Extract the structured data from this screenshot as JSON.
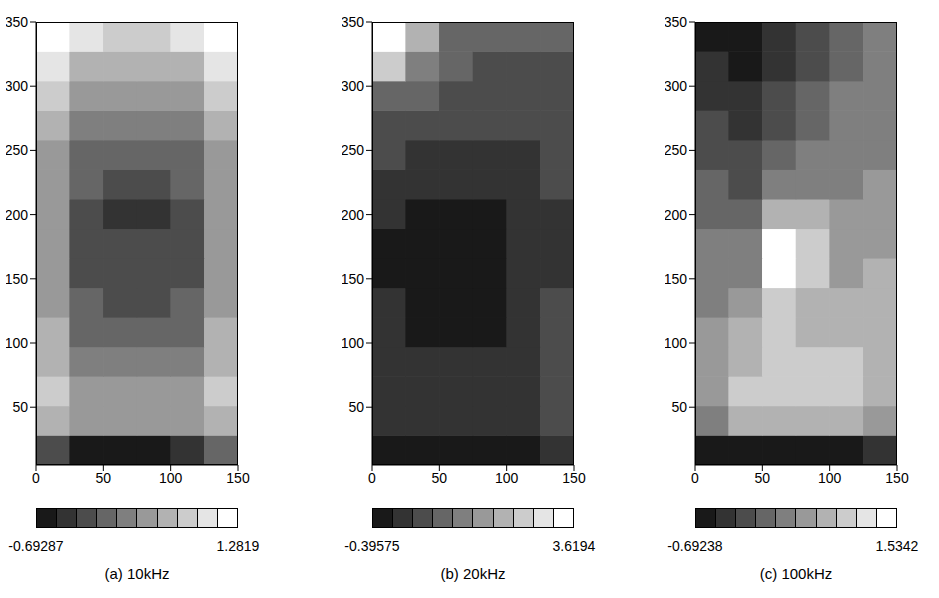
{
  "chart_data": [
    {
      "type": "heatmap",
      "title": "(a) 10kHz",
      "x": [
        12.5,
        37.5,
        62.5,
        87.5,
        112.5,
        137.5
      ],
      "y": [
        16.5,
        39.5,
        62.5,
        85.5,
        108.5,
        131.5,
        154.5,
        177.5,
        200.5,
        223.5,
        246.5,
        269.5,
        292.5,
        315.5,
        338.5
      ],
      "cells": [
        [
          -0.2,
          -0.5,
          -0.6,
          -0.5,
          -0.4,
          -0.1
        ],
        [
          0.6,
          0.3,
          0.3,
          0.3,
          0.3,
          0.6
        ],
        [
          0.7,
          0.4,
          0.3,
          0.3,
          0.4,
          0.7
        ],
        [
          0.6,
          0.2,
          0.1,
          0.1,
          0.2,
          0.6
        ],
        [
          0.5,
          0.0,
          -0.1,
          -0.1,
          0.0,
          0.5
        ],
        [
          0.4,
          -0.1,
          -0.2,
          -0.2,
          -0.1,
          0.4
        ],
        [
          0.3,
          -0.2,
          -0.2,
          -0.2,
          -0.2,
          0.3
        ],
        [
          0.3,
          -0.2,
          -0.2,
          -0.2,
          -0.2,
          0.3
        ],
        [
          0.3,
          -0.2,
          -0.3,
          -0.3,
          -0.2,
          0.3
        ],
        [
          0.3,
          -0.1,
          -0.2,
          -0.2,
          -0.1,
          0.3
        ],
        [
          0.4,
          0.0,
          -0.1,
          -0.1,
          0.0,
          0.4
        ],
        [
          0.5,
          0.2,
          0.1,
          0.1,
          0.2,
          0.5
        ],
        [
          0.7,
          0.4,
          0.3,
          0.3,
          0.4,
          0.7
        ],
        [
          0.9,
          0.6,
          0.5,
          0.5,
          0.6,
          0.9
        ],
        [
          1.1,
          0.9,
          0.8,
          0.8,
          0.9,
          1.1
        ]
      ],
      "xlim": [
        0,
        150
      ],
      "xticks": [
        0,
        50,
        100,
        150
      ],
      "ylim": [
        5,
        350
      ],
      "yticks": [
        50,
        100,
        150,
        200,
        250,
        300,
        350
      ],
      "colorbar": {
        "range": [
          -0.69287,
          1.2819
        ],
        "ticks": [
          -0.69287,
          1.2819
        ]
      }
    },
    {
      "type": "heatmap",
      "title": "(b) 20kHz",
      "x": [
        12.5,
        37.5,
        62.5,
        87.5,
        112.5,
        137.5
      ],
      "y": [
        16.5,
        39.5,
        62.5,
        85.5,
        108.5,
        131.5,
        154.5,
        177.5,
        200.5,
        223.5,
        246.5,
        269.5,
        292.5,
        315.5,
        338.5
      ],
      "cells": [
        [
          -0.3,
          -0.3,
          -0.3,
          -0.3,
          -0.2,
          0.2
        ],
        [
          0.2,
          0.1,
          0.1,
          0.2,
          0.4,
          0.8
        ],
        [
          0.2,
          0.1,
          0.1,
          0.1,
          0.3,
          0.7
        ],
        [
          0.1,
          0.1,
          0.1,
          0.1,
          0.3,
          0.7
        ],
        [
          0.1,
          0.0,
          0.0,
          0.0,
          0.2,
          0.6
        ],
        [
          0.1,
          -0.1,
          0.0,
          0.0,
          0.1,
          0.5
        ],
        [
          0.0,
          -0.3,
          0.0,
          -0.2,
          0.1,
          0.4
        ],
        [
          0.0,
          -0.3,
          0.0,
          -0.3,
          0.1,
          0.4
        ],
        [
          0.1,
          -0.2,
          0.0,
          -0.2,
          0.1,
          0.4
        ],
        [
          0.3,
          0.1,
          0.1,
          0.1,
          0.2,
          0.5
        ],
        [
          0.5,
          0.3,
          0.3,
          0.3,
          0.4,
          0.6
        ],
        [
          0.8,
          0.6,
          0.5,
          0.5,
          0.6,
          0.7
        ],
        [
          1.2,
          0.9,
          0.7,
          0.7,
          0.7,
          0.7
        ],
        [
          2.6,
          1.6,
          0.9,
          0.8,
          0.8,
          0.8
        ],
        [
          3.6,
          2.2,
          1.0,
          0.9,
          0.9,
          0.9
        ]
      ],
      "xlim": [
        0,
        150
      ],
      "xticks": [
        0,
        50,
        100,
        150
      ],
      "ylim": [
        5,
        350
      ],
      "yticks": [
        50,
        100,
        150,
        200,
        250,
        300,
        350
      ],
      "colorbar": {
        "range": [
          -0.39575,
          3.6194
        ],
        "ticks": [
          -0.39575,
          3.6194
        ]
      }
    },
    {
      "type": "heatmap",
      "title": "(c) 100kHz",
      "x": [
        12.5,
        37.5,
        62.5,
        87.5,
        112.5,
        137.5
      ],
      "y": [
        16.5,
        39.5,
        62.5,
        85.5,
        108.5,
        131.5,
        154.5,
        177.5,
        200.5,
        223.5,
        246.5,
        269.5,
        292.5,
        315.5,
        338.5
      ],
      "cells": [
        [
          -0.6,
          -0.6,
          -0.5,
          -0.5,
          -0.5,
          -0.4
        ],
        [
          0.4,
          0.7,
          0.8,
          0.8,
          0.7,
          0.6
        ],
        [
          0.6,
          0.9,
          1.0,
          1.0,
          0.9,
          0.8
        ],
        [
          0.6,
          0.8,
          0.9,
          0.9,
          0.9,
          0.8
        ],
        [
          0.5,
          0.7,
          0.9,
          0.8,
          0.8,
          0.8
        ],
        [
          0.4,
          0.5,
          1.0,
          0.8,
          0.7,
          0.7
        ],
        [
          0.3,
          0.4,
          1.5,
          1.0,
          0.6,
          0.7
        ],
        [
          0.2,
          0.3,
          1.4,
          1.0,
          0.6,
          0.6
        ],
        [
          0.1,
          0.1,
          0.8,
          0.7,
          0.5,
          0.5
        ],
        [
          0.0,
          -0.1,
          0.4,
          0.4,
          0.4,
          0.5
        ],
        [
          -0.1,
          -0.2,
          0.1,
          0.2,
          0.3,
          0.4
        ],
        [
          -0.2,
          -0.3,
          -0.1,
          0.1,
          0.2,
          0.4
        ],
        [
          -0.3,
          -0.4,
          -0.2,
          0.0,
          0.2,
          0.3
        ],
        [
          -0.4,
          -0.5,
          -0.3,
          -0.1,
          0.1,
          0.3
        ],
        [
          -0.5,
          -0.6,
          -0.4,
          -0.2,
          0.0,
          0.2
        ]
      ],
      "xlim": [
        0,
        150
      ],
      "xticks": [
        0,
        50,
        100,
        150
      ],
      "ylim": [
        5,
        350
      ],
      "yticks": [
        50,
        100,
        150,
        200,
        250,
        300,
        350
      ],
      "colorbar": {
        "range": [
          -0.69238,
          1.5342
        ],
        "ticks": [
          -0.69238,
          1.5342
        ]
      }
    }
  ]
}
